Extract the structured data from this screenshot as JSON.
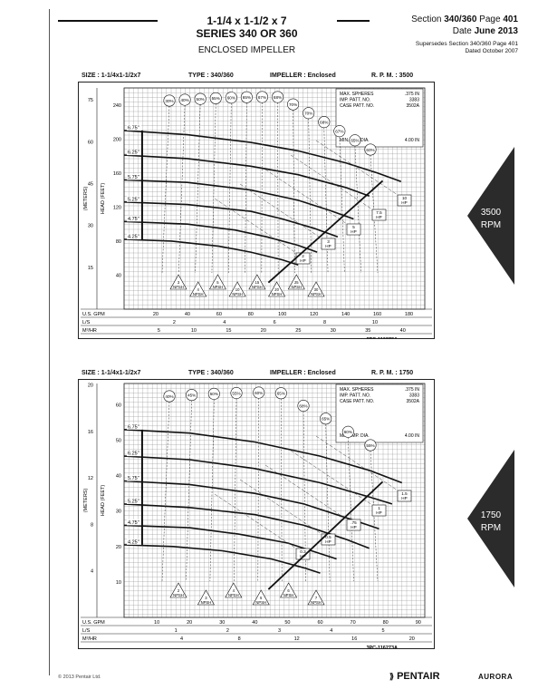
{
  "header": {
    "title_line1": "1-1/4 x 1-1/2 x 7",
    "title_line2": "SERIES 340 OR 360",
    "subtitle": "ENCLOSED IMPELLER",
    "section_label": "Section ",
    "section_value": "340/360",
    "page_label": " Page ",
    "page_value": "401",
    "date_label": "Date ",
    "date_value": "June 2013",
    "supersedes_line1": "Supersedes Section 340/360 Page 401",
    "supersedes_line2": "Dated October 2007"
  },
  "side_tabs": [
    {
      "label_top": "3500",
      "label_bottom": "RPM",
      "color": "#2b2b2b"
    },
    {
      "label_top": "1750",
      "label_bottom": "RPM",
      "color": "#2b2b2b"
    }
  ],
  "footer": {
    "copyright": "© 2013 Pentair Ltd.",
    "brand1": "PENTAIR",
    "brand2": "AURORA"
  },
  "chart_data": [
    {
      "type": "line",
      "header": {
        "size": "SIZE : 1-1/4x1-1/2x7",
        "type": "TYPE : 340/360",
        "impeller": "IMPELLER : Enclosed",
        "rpm": "R. P. M. : 3500"
      },
      "info_box": {
        "rows": [
          [
            "MAX. SPHERES",
            ".375 IN"
          ],
          [
            "IMP. PATT. NO.",
            "3383"
          ],
          [
            "CASE PATT. NO.",
            "3502A"
          ]
        ],
        "min_imp": [
          "MIN. IMP. DIA.",
          "4.00 IN"
        ]
      },
      "drawing_no": "3PC-116272A",
      "xlabel": "U.S. GPM",
      "xlabel_ls": "L/S",
      "xlabel_m3": "M³/HR",
      "ylabel": "HEAD (FEET)",
      "ylabel_m": "(METERS)",
      "xlim": [
        0,
        190
      ],
      "ylim": [
        0,
        260
      ],
      "x_ticks": [
        20,
        40,
        60,
        80,
        100,
        120,
        140,
        160,
        180
      ],
      "y_ticks": [
        40,
        80,
        120,
        160,
        200,
        240
      ],
      "ls_ticks": [
        2,
        4,
        6,
        8,
        10
      ],
      "m3_ticks": [
        5,
        10,
        15,
        20,
        25,
        30,
        35,
        40
      ],
      "meter_ticks": [
        15,
        30,
        45,
        60,
        75
      ],
      "series": [
        {
          "name": "6.75\"",
          "x": [
            0,
            40,
            80,
            110,
            140,
            160,
            175
          ],
          "values": [
            210,
            205,
            196,
            186,
            172,
            160,
            150
          ]
        },
        {
          "name": "6.25\"",
          "x": [
            0,
            40,
            80,
            110,
            140,
            155
          ],
          "values": [
            181,
            177,
            168,
            158,
            143,
            133
          ]
        },
        {
          "name": "5.75\"",
          "x": [
            0,
            40,
            80,
            110,
            130,
            145
          ],
          "values": [
            152,
            149,
            140,
            128,
            116,
            106
          ]
        },
        {
          "name": "5.25\"",
          "x": [
            0,
            40,
            80,
            100,
            120,
            135
          ],
          "values": [
            126,
            123,
            115,
            106,
            95,
            85
          ]
        },
        {
          "name": "4.75\"",
          "x": [
            0,
            40,
            70,
            90,
            110,
            122
          ],
          "values": [
            103,
            100,
            93,
            85,
            75,
            67
          ]
        },
        {
          "name": "4.25\"",
          "x": [
            0,
            30,
            60,
            80,
            100,
            110
          ],
          "values": [
            82,
            80,
            74,
            67,
            58,
            52
          ]
        }
      ],
      "efficiency_labels": [
        "30%",
        "40%",
        "50%",
        "55%",
        "60%",
        "65%",
        "67%",
        "68%",
        "70%",
        "70%",
        "68%",
        "67%",
        "65%",
        "60%"
      ],
      "hp_labels": [
        "10 HP",
        "7.5 HP",
        "5 HP",
        "3 HP",
        "2 HP"
      ],
      "npsh_labels": [
        "3 NPSH",
        "4 NPSH",
        "5 NPSH",
        "10 NPSH",
        "15 NPSH",
        "20 NPSH",
        "25 NPSH",
        "30 NPSH"
      ]
    },
    {
      "type": "line",
      "header": {
        "size": "SIZE : 1-1/4x1-1/2x7",
        "type": "TYPE : 340/360",
        "impeller": "IMPELLER : Enclosed",
        "rpm": "R. P. M. : 1750"
      },
      "info_box": {
        "rows": [
          [
            "MAX. SPHERES",
            ".375 IN"
          ],
          [
            "IMP. PATT. NO.",
            "3383"
          ],
          [
            "CASE PATT. NO.",
            "3502A"
          ]
        ],
        "min_imp": [
          "MIN. IMP. DIA.",
          "4.00 IN"
        ]
      },
      "drawing_no": "3PC-116273A",
      "xlabel": "U.S. GPM",
      "xlabel_ls": "L/S",
      "xlabel_m3": "M³/HR",
      "ylabel": "HEAD (FEET)",
      "ylabel_m": "(METERS)",
      "xlim": [
        0,
        92
      ],
      "ylim": [
        0,
        66
      ],
      "x_ticks": [
        10,
        20,
        30,
        40,
        50,
        60,
        70,
        80,
        90
      ],
      "y_ticks": [
        10,
        20,
        30,
        40,
        50,
        60
      ],
      "ls_ticks": [
        1,
        2,
        3,
        4,
        5
      ],
      "m3_ticks": [
        4,
        8,
        12,
        16,
        20
      ],
      "meter_ticks": [
        4,
        8,
        12,
        16,
        20
      ],
      "series": [
        {
          "name": "6.75\"",
          "x": [
            0,
            20,
            40,
            60,
            75,
            85
          ],
          "values": [
            53,
            52,
            49.5,
            45.5,
            41.5,
            38
          ]
        },
        {
          "name": "6.25\"",
          "x": [
            0,
            20,
            40,
            60,
            75,
            82
          ],
          "values": [
            45.5,
            44.5,
            42,
            38,
            34,
            32
          ]
        },
        {
          "name": "5.75\"",
          "x": [
            0,
            20,
            40,
            55,
            70,
            78
          ],
          "values": [
            38.5,
            37.5,
            35,
            32,
            27.5,
            25
          ]
        },
        {
          "name": "5.25\"",
          "x": [
            0,
            20,
            40,
            55,
            68,
            75
          ],
          "values": [
            32,
            31,
            29,
            26,
            22,
            19.5
          ]
        },
        {
          "name": "4.75\"",
          "x": [
            0,
            20,
            35,
            50,
            60,
            65
          ],
          "values": [
            26,
            25.3,
            23.5,
            21,
            18,
            16.5
          ]
        },
        {
          "name": "4.25\"",
          "x": [
            0,
            15,
            30,
            45,
            55,
            60
          ],
          "values": [
            20.5,
            20,
            18.8,
            16.5,
            14,
            12.5
          ]
        }
      ],
      "efficiency_labels": [
        "40%",
        "45%",
        "50%",
        "55%",
        "60%",
        "65%",
        "68%",
        "65%",
        "60%",
        "55%"
      ],
      "hp_labels": [
        "1.5 HP",
        "1 HP",
        ".75 HP",
        "0.5 HP",
        "0.3 HP"
      ],
      "npsh_labels": [
        "2 NPSH",
        "3 NPSH",
        "4 NPSH",
        "5 NPSH",
        "6 NPSH",
        "7 NPSH"
      ]
    }
  ]
}
